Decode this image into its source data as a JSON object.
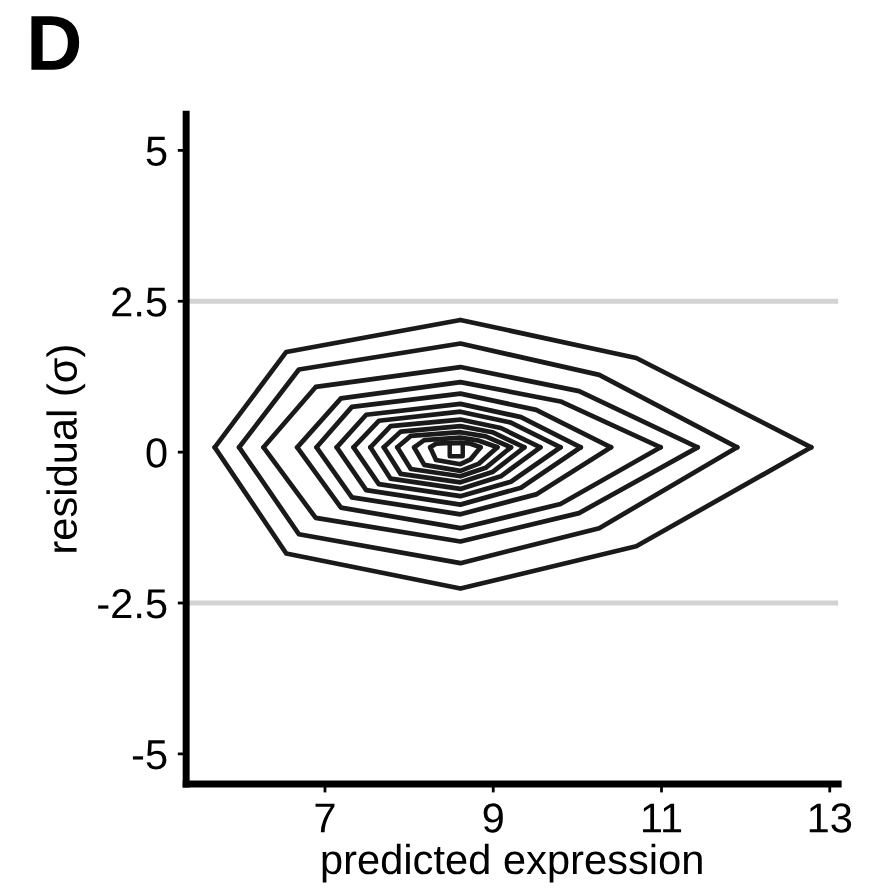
{
  "chart_data": {
    "type": "line",
    "title": "D",
    "xlabel": "predicted expression",
    "ylabel": "residual (σ)",
    "xlim": [
      5.35,
      13.1
    ],
    "ylim": [
      -5.5,
      5.6
    ],
    "xticks": [
      7,
      9,
      11,
      13
    ],
    "yticks": [
      -5,
      -2.5,
      0,
      2.5,
      5
    ],
    "grid": false,
    "legend": false,
    "marker": "none",
    "line_style": "solid",
    "ref_lines": [
      {
        "axis": "y",
        "value": 2.5,
        "color": "#d3d3d3"
      },
      {
        "axis": "y",
        "value": -2.5,
        "color": "#d3d3d3"
      }
    ],
    "series": [
      {
        "color": "#1a1a1a",
        "x": [
          5.69,
          6.54,
          8.61,
          10.7,
          12.78
        ],
        "values": [
          0.08,
          1.66,
          2.19,
          1.56,
          0.08
        ]
      },
      {
        "color": "#1a1a1a",
        "x": [
          5.69,
          6.54,
          8.61,
          10.7,
          12.78
        ],
        "values": [
          0.08,
          -1.68,
          -2.26,
          -1.56,
          0.08
        ]
      },
      {
        "color": "#1a1a1a",
        "x": [
          5.98,
          6.69,
          8.61,
          10.26,
          11.9
        ],
        "values": [
          0.08,
          1.37,
          1.8,
          1.28,
          0.08
        ]
      },
      {
        "color": "#1a1a1a",
        "x": [
          5.98,
          6.69,
          8.61,
          10.26,
          11.9
        ],
        "values": [
          0.08,
          -1.36,
          -1.84,
          -1.26,
          0.08
        ]
      },
      {
        "color": "#1a1a1a",
        "x": [
          6.27,
          6.89,
          8.61,
          10.02,
          11.43
        ],
        "values": [
          0.08,
          1.08,
          1.41,
          1.01,
          0.08
        ]
      },
      {
        "color": "#1a1a1a",
        "x": [
          6.27,
          6.89,
          8.61,
          10.02,
          11.43
        ],
        "values": [
          0.08,
          -1.09,
          -1.48,
          -1.01,
          0.08
        ]
      },
      {
        "color": "#1a1a1a",
        "x": [
          6.67,
          7.19,
          8.61,
          9.8,
          10.99
        ],
        "values": [
          0.08,
          0.89,
          1.16,
          0.84,
          0.08
        ]
      },
      {
        "color": "#1a1a1a",
        "x": [
          6.67,
          7.19,
          8.61,
          9.8,
          10.99
        ],
        "values": [
          0.08,
          -0.92,
          -1.26,
          -0.86,
          0.08
        ]
      },
      {
        "color": "#1a1a1a",
        "x": [
          6.9,
          7.32,
          8.61,
          9.51,
          10.4
        ],
        "values": [
          0.08,
          0.75,
          0.97,
          0.7,
          0.08
        ]
      },
      {
        "color": "#1a1a1a",
        "x": [
          6.9,
          7.32,
          8.61,
          9.51,
          10.4
        ],
        "values": [
          0.08,
          -0.75,
          -1.03,
          -0.7,
          0.08
        ]
      },
      {
        "color": "#1a1a1a",
        "x": [
          7.14,
          7.49,
          8.61,
          9.33,
          10.04
        ],
        "values": [
          0.08,
          0.62,
          0.8,
          0.58,
          0.08
        ]
      },
      {
        "color": "#1a1a1a",
        "x": [
          7.14,
          7.49,
          8.61,
          9.33,
          10.04
        ],
        "values": [
          0.08,
          -0.63,
          -0.87,
          -0.59,
          0.08
        ]
      },
      {
        "color": "#1a1a1a",
        "x": [
          7.34,
          7.64,
          8.61,
          9.21,
          9.8
        ],
        "values": [
          0.08,
          0.52,
          0.67,
          0.49,
          0.08
        ]
      },
      {
        "color": "#1a1a1a",
        "x": [
          7.34,
          7.64,
          8.61,
          9.21,
          9.8
        ],
        "values": [
          0.08,
          -0.53,
          -0.73,
          -0.49,
          0.08
        ]
      },
      {
        "color": "#1a1a1a",
        "x": [
          7.54,
          7.78,
          8.61,
          9.09,
          9.56
        ],
        "values": [
          0.08,
          0.43,
          0.54,
          0.4,
          0.08
        ]
      },
      {
        "color": "#1a1a1a",
        "x": [
          7.54,
          7.78,
          8.61,
          9.09,
          9.56
        ],
        "values": [
          0.08,
          -0.44,
          -0.61,
          -0.4,
          0.08
        ]
      },
      {
        "color": "#1a1a1a",
        "x": [
          7.7,
          7.9,
          8.61,
          8.99,
          9.37
        ],
        "values": [
          0.08,
          0.34,
          0.43,
          0.33,
          0.08
        ]
      },
      {
        "color": "#1a1a1a",
        "x": [
          7.7,
          7.9,
          8.61,
          8.99,
          9.37
        ],
        "values": [
          0.08,
          -0.36,
          -0.5,
          -0.33,
          0.08
        ]
      },
      {
        "color": "#1a1a1a",
        "x": [
          7.86,
          8.02,
          8.61,
          8.91,
          9.21
        ],
        "values": [
          0.08,
          0.27,
          0.33,
          0.26,
          0.08
        ]
      },
      {
        "color": "#1a1a1a",
        "x": [
          7.86,
          8.02,
          8.61,
          8.91,
          9.21
        ],
        "values": [
          0.08,
          -0.28,
          -0.4,
          -0.26,
          0.08
        ]
      },
      {
        "color": "#1a1a1a",
        "x": [
          8.06,
          8.18,
          8.61,
          8.83,
          9.05
        ],
        "values": [
          0.08,
          0.2,
          0.24,
          0.19,
          0.08
        ]
      },
      {
        "color": "#1a1a1a",
        "x": [
          8.06,
          8.18,
          8.61,
          8.83,
          9.05
        ],
        "values": [
          0.08,
          -0.21,
          -0.31,
          -0.19,
          0.08
        ]
      },
      {
        "color": "#1a1a1a",
        "x": [
          8.25,
          8.32,
          8.61,
          8.73,
          8.85
        ],
        "values": [
          0.08,
          0.14,
          0.16,
          0.14,
          0.08
        ]
      },
      {
        "color": "#1a1a1a",
        "x": [
          8.25,
          8.32,
          8.61,
          8.73,
          8.85
        ],
        "values": [
          0.08,
          -0.13,
          -0.2,
          -0.12,
          0.08
        ]
      },
      {
        "color": "#1a1a1a",
        "type": "scatter",
        "marker": "square",
        "x": [
          8.56
        ],
        "values": [
          0.04
        ]
      }
    ]
  }
}
